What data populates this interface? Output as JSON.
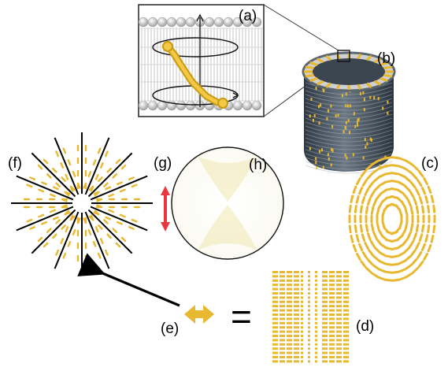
{
  "labels": {
    "a": "(a)",
    "b": "(b)",
    "c": "(c)",
    "d": "(d)",
    "e": "(e)",
    "f": "(f)",
    "g": "(g)",
    "h": "(h)"
  },
  "equals_sign": "=",
  "colors": {
    "lipid_yellow": "#e8b830",
    "double_arrow_red": "#e8383d",
    "membrane_gray": "#9a9a9a",
    "tube_dark": "#3e4a55",
    "hologram_tint": "#f1e9b0"
  }
}
